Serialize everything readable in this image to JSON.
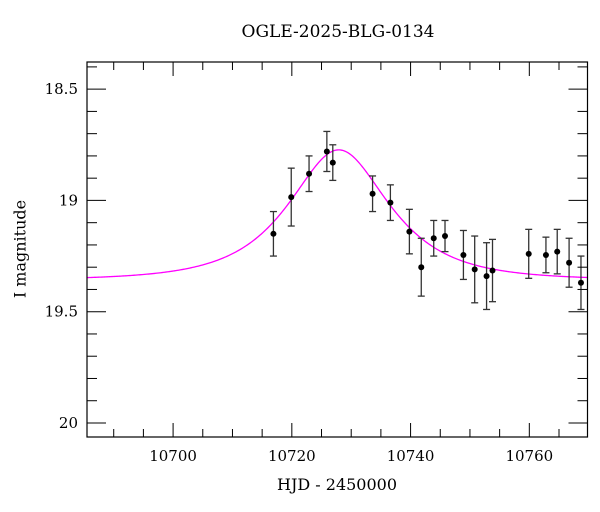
{
  "chart_data": {
    "type": "scatter",
    "title": "OGLE-2025-BLG-0134",
    "xlabel": "HJD - 2450000",
    "ylabel": "I magnitude",
    "xlim": [
      10685.5,
      10769.8
    ],
    "ylim": [
      20.063,
      18.378
    ],
    "y_inverted": true,
    "x_major_ticks": [
      10700,
      10720,
      10740,
      10760
    ],
    "x_tick_labels": [
      "10700",
      "10720",
      "10740",
      "10760"
    ],
    "x_minor_step": 5,
    "y_major_ticks": [
      18.5,
      19,
      19.5,
      20
    ],
    "y_tick_labels": [
      "18.5",
      "19",
      "19.5",
      "20"
    ],
    "y_minor_step": 0.1,
    "grid": false,
    "legend": null,
    "series": [
      {
        "name": "observations",
        "type": "scatter_errorbar",
        "color": "#000000",
        "points": [
          {
            "x": 10716.9,
            "y": 19.15,
            "err": 0.1
          },
          {
            "x": 10719.9,
            "y": 18.985,
            "err": 0.13
          },
          {
            "x": 10722.9,
            "y": 18.88,
            "err": 0.08
          },
          {
            "x": 10725.9,
            "y": 18.78,
            "err": 0.09
          },
          {
            "x": 10726.9,
            "y": 18.83,
            "err": 0.08
          },
          {
            "x": 10733.6,
            "y": 18.97,
            "err": 0.08
          },
          {
            "x": 10736.6,
            "y": 19.01,
            "err": 0.08
          },
          {
            "x": 10739.8,
            "y": 19.14,
            "err": 0.1
          },
          {
            "x": 10741.8,
            "y": 19.3,
            "err": 0.13
          },
          {
            "x": 10743.9,
            "y": 19.17,
            "err": 0.08
          },
          {
            "x": 10745.8,
            "y": 19.16,
            "err": 0.07
          },
          {
            "x": 10748.9,
            "y": 19.245,
            "err": 0.11
          },
          {
            "x": 10750.8,
            "y": 19.31,
            "err": 0.15
          },
          {
            "x": 10752.8,
            "y": 19.34,
            "err": 0.15
          },
          {
            "x": 10753.8,
            "y": 19.315,
            "err": 0.14
          },
          {
            "x": 10759.9,
            "y": 19.24,
            "err": 0.11
          },
          {
            "x": 10762.8,
            "y": 19.245,
            "err": 0.08
          },
          {
            "x": 10764.7,
            "y": 19.23,
            "err": 0.1
          },
          {
            "x": 10766.7,
            "y": 19.28,
            "err": 0.11
          },
          {
            "x": 10768.7,
            "y": 19.37,
            "err": 0.12
          }
        ]
      },
      {
        "name": "model",
        "type": "line",
        "color": "#ff00ff",
        "model": "paczynski",
        "params": {
          "t0": 10727.9,
          "tE": 12.5,
          "u0": 0.68,
          "baseline_mag": 19.358
        }
      }
    ]
  }
}
